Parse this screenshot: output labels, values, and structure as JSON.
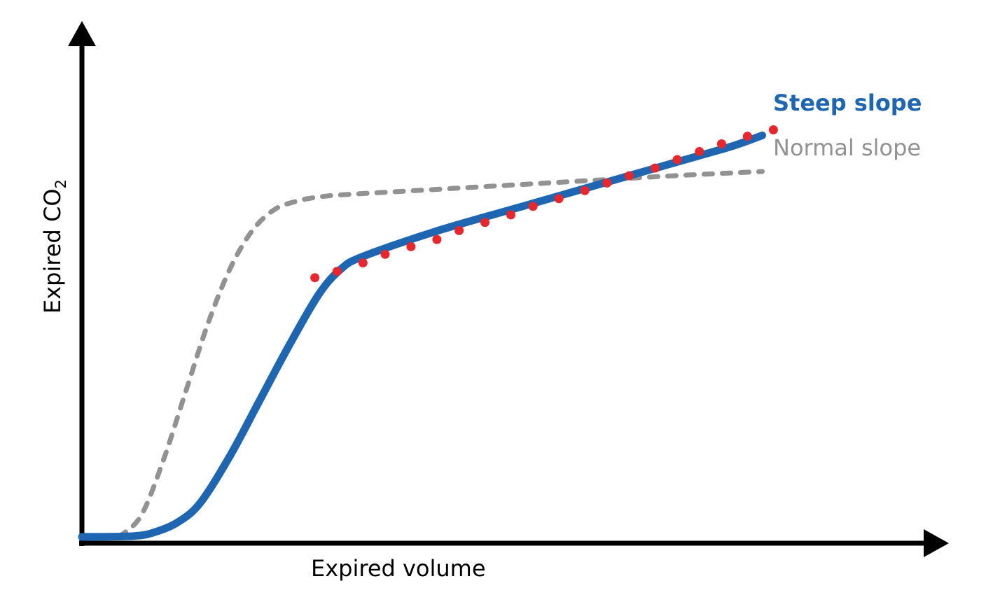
{
  "chart_data": {
    "type": "line",
    "title": "",
    "xlabel": "Expired volume",
    "ylabel_main": "Expired CO",
    "ylabel_sub": "2",
    "xlim": [
      0,
      100
    ],
    "ylim": [
      0,
      100
    ],
    "grid": false,
    "colors": {
      "steep": "#1f66b2",
      "normal": "#929292",
      "dots": "#e8262c",
      "axis": "#000000"
    },
    "series": [
      {
        "name": "Steep slope",
        "style": "solid",
        "x": [
          0,
          7,
          10,
          13,
          16,
          20,
          24,
          28,
          32,
          35,
          38,
          48,
          60,
          72,
          80,
          88,
          92
        ],
        "y": [
          0,
          0.2,
          1.2,
          3.5,
          8,
          19,
          32,
          45,
          57,
          63,
          66,
          72,
          78,
          84,
          88,
          92,
          94.5
        ]
      },
      {
        "name": "Normal slope",
        "style": "dashed",
        "x": [
          5,
          8,
          11,
          14,
          17,
          20,
          23,
          26,
          29,
          32,
          35,
          40,
          50,
          60,
          70,
          80,
          92
        ],
        "y": [
          0,
          5,
          18,
          34,
          50,
          63,
          72,
          77,
          79,
          80,
          80.5,
          81,
          82,
          83,
          84,
          85,
          86
        ]
      }
    ],
    "dots": {
      "x": [
        31.5,
        34.5,
        38,
        41,
        44.5,
        48,
        51,
        54.5,
        58,
        61,
        64.5,
        68,
        71,
        74,
        77.5,
        80.5,
        83.5,
        86.5,
        90,
        93.5
      ],
      "y": [
        61,
        62.5,
        64.5,
        66.5,
        68.3,
        70,
        72.1,
        74,
        75.8,
        77.8,
        79.6,
        81.5,
        83.3,
        85,
        86.8,
        88.8,
        90.7,
        92.5,
        94.3,
        95.8
      ]
    }
  }
}
